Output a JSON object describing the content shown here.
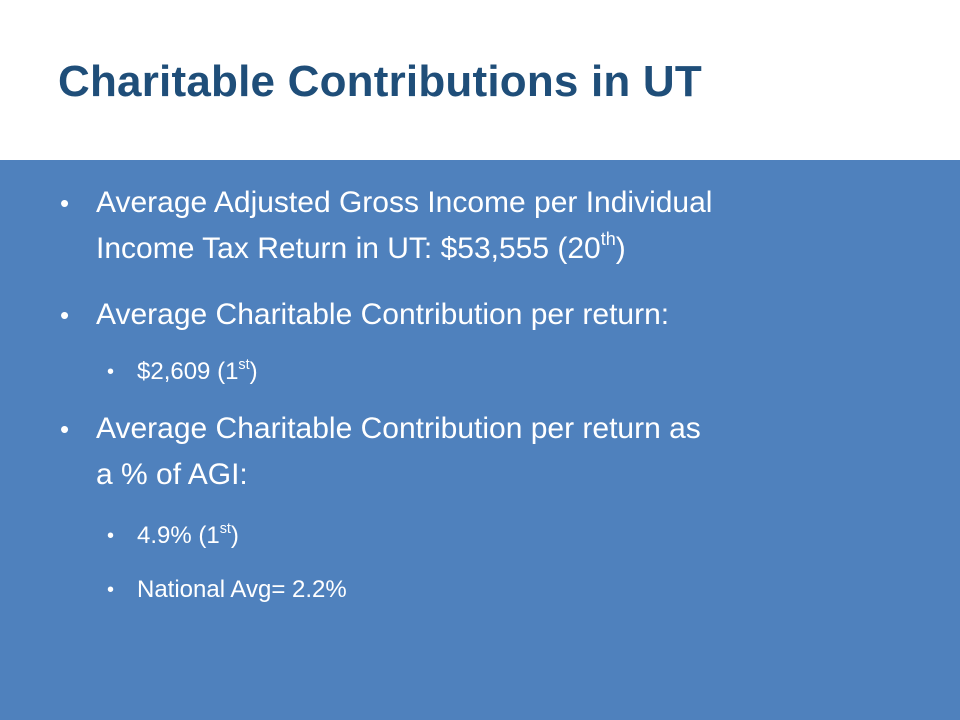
{
  "slide": {
    "title": "Charitable Contributions in UT",
    "colors": {
      "title_text": "#1f4e79",
      "body_background": "#4f81bd",
      "body_text": "#ffffff",
      "title_background": "#ffffff"
    },
    "bullets": [
      {
        "level": 1,
        "line1": "Average Adjusted Gross Income per Individual",
        "line2_text": "Income Tax Return in UT: $53,555 (20",
        "line2_sup": "th",
        "line2_after": ")"
      },
      {
        "level": 1,
        "text": "Average Charitable Contribution per return:"
      },
      {
        "level": 2,
        "text": "$2,609 (1",
        "sup": "st",
        "after": ")"
      },
      {
        "level": 1,
        "line1": "Average Charitable Contribution per return as",
        "line2_text": "a % of AGI:"
      },
      {
        "level": 2,
        "text": "4.9% (1",
        "sup": "st",
        "after": ")"
      },
      {
        "level": 2,
        "text": "National Avg= 2.2%"
      }
    ],
    "bullet_glyph": "•"
  }
}
